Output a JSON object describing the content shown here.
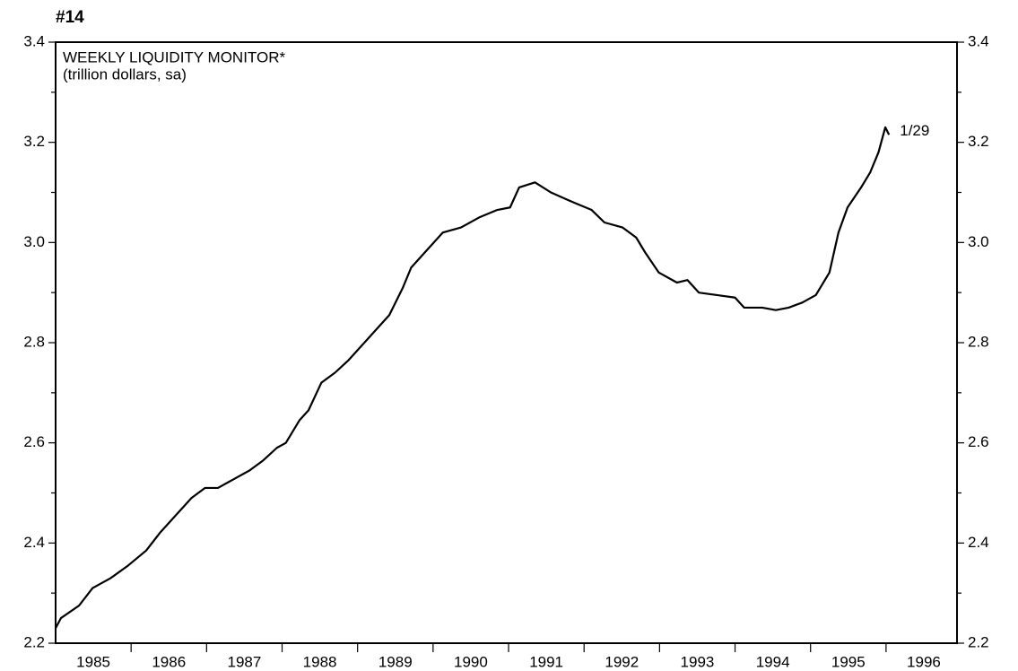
{
  "chart_data": {
    "type": "line",
    "label": "#14",
    "title": "WEEKLY LIQUIDITY MONITOR*",
    "subtitle": "(trillion dollars, sa)",
    "annotation": "1/29",
    "x": [
      1985.0,
      1985.07,
      1985.31,
      1985.49,
      1985.73,
      1985.96,
      1986.2,
      1986.38,
      1986.56,
      1986.8,
      1986.98,
      1987.15,
      1987.33,
      1987.57,
      1987.75,
      1987.93,
      1988.05,
      1988.23,
      1988.35,
      1988.52,
      1988.7,
      1988.88,
      1989.06,
      1989.24,
      1989.42,
      1989.6,
      1989.71,
      1989.95,
      1990.13,
      1990.37,
      1990.61,
      1990.85,
      1991.02,
      1991.14,
      1991.35,
      1991.56,
      1991.86,
      1992.1,
      1992.27,
      1992.51,
      1992.69,
      1992.81,
      1992.99,
      1993.23,
      1993.37,
      1993.52,
      1993.76,
      1994.0,
      1994.12,
      1994.36,
      1994.54,
      1994.71,
      1994.89,
      1995.07,
      1995.25,
      1995.37,
      1995.49,
      1995.67,
      1995.79,
      1995.9,
      1995.99,
      1996.04
    ],
    "series": [
      {
        "color": "#000000",
        "values": [
          2.23,
          2.25,
          2.275,
          2.31,
          2.33,
          2.355,
          2.385,
          2.42,
          2.45,
          2.49,
          2.51,
          2.51,
          2.525,
          2.545,
          2.565,
          2.59,
          2.6,
          2.645,
          2.665,
          2.72,
          2.74,
          2.765,
          2.795,
          2.825,
          2.855,
          2.91,
          2.95,
          2.99,
          3.02,
          3.03,
          3.05,
          3.065,
          3.07,
          3.11,
          3.12,
          3.1,
          3.08,
          3.065,
          3.04,
          3.03,
          3.01,
          2.98,
          2.94,
          2.92,
          2.925,
          2.9,
          2.895,
          2.89,
          2.87,
          2.87,
          2.865,
          2.87,
          2.88,
          2.895,
          2.94,
          3.02,
          3.07,
          3.11,
          3.14,
          3.18,
          3.23,
          3.215
        ]
      }
    ],
    "xlim": [
      1985,
      1996.94
    ],
    "xticks": [
      {
        "value": 1985.5,
        "label": "1985"
      },
      {
        "value": 1986.5,
        "label": "1986"
      },
      {
        "value": 1987.5,
        "label": "1987"
      },
      {
        "value": 1988.5,
        "label": "1988"
      },
      {
        "value": 1989.5,
        "label": "1989"
      },
      {
        "value": 1990.5,
        "label": "1990"
      },
      {
        "value": 1991.5,
        "label": "1991"
      },
      {
        "value": 1992.5,
        "label": "1992"
      },
      {
        "value": 1993.5,
        "label": "1993"
      },
      {
        "value": 1994.5,
        "label": "1994"
      },
      {
        "value": 1995.5,
        "label": "1995"
      },
      {
        "value": 1996.5,
        "label": "1996"
      }
    ],
    "xminor_ticks": [
      1986,
      1987,
      1988,
      1989,
      1990,
      1991,
      1992,
      1993,
      1994,
      1995,
      1996
    ],
    "ylim": [
      2.2,
      3.4
    ],
    "yticks": [
      2.2,
      2.4,
      2.6,
      2.8,
      {
        "value": 3,
        "label": "3.0"
      },
      3.2,
      3.4
    ],
    "yminor_ticks": [
      2.3,
      2.5,
      2.7,
      2.9,
      3.1,
      3.3
    ]
  }
}
